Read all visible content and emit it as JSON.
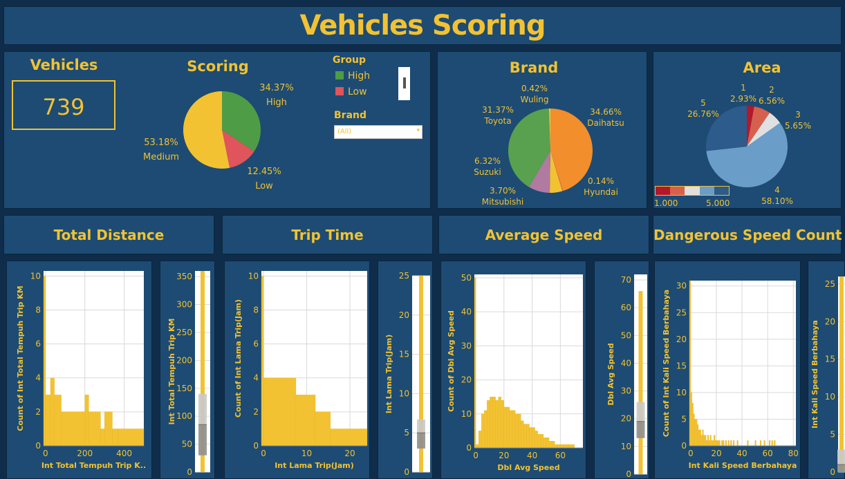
{
  "header": {
    "title": "Vehicles Scoring"
  },
  "kpi": {
    "title": "Vehicles",
    "value": "739"
  },
  "scoring": {
    "title": "Scoring",
    "high_pct": "34.37%",
    "high_label": "High",
    "low_pct": "12.45%",
    "low_label": "Low",
    "medium_pct": "53.18%",
    "medium_label": "Medium"
  },
  "filters": {
    "group_title": "Group",
    "group_items": [
      {
        "label": "High",
        "color": "#4e9c46"
      },
      {
        "label": "Low",
        "color": "#e0545c"
      }
    ],
    "brand_title": "Brand",
    "brand_value": "(All)"
  },
  "brand": {
    "title": "Brand",
    "labels": [
      {
        "pct": "0.42%",
        "name": "Wuling"
      },
      {
        "pct": "34.66%",
        "name": "Daihatsu"
      },
      {
        "pct": "31.37%",
        "name": "Toyota"
      },
      {
        "pct": "6.32%",
        "name": "Suzuki"
      },
      {
        "pct": "0.14%",
        "name": "Hyundai"
      },
      {
        "pct": "3.70%",
        "name": "Mitsubishi"
      }
    ]
  },
  "area": {
    "title": "Area",
    "labels": [
      {
        "num": "1",
        "pct": "2.93%"
      },
      {
        "num": "2",
        "pct": "6.56%"
      },
      {
        "num": "3",
        "pct": "5.65%"
      },
      {
        "num": "4",
        "pct": "58.10%"
      },
      {
        "num": "5",
        "pct": "26.76%"
      }
    ],
    "legend_min": "1.000",
    "legend_max": "5.000"
  },
  "sections": {
    "distance": "Total Distance",
    "trip": "Trip Time",
    "speed": "Average Speed",
    "danger": "Dangerous Speed Count"
  },
  "colors": {
    "accent": "#f2c232",
    "panel": "#1d4b73",
    "background": "#0f2d4a"
  },
  "chart_data": [
    {
      "type": "pie",
      "title": "Scoring",
      "labels": [
        "High",
        "Low",
        "Medium"
      ],
      "values": [
        34.37,
        12.45,
        53.18
      ],
      "colors": [
        "#4e9c46",
        "#e0545c",
        "#f2c232"
      ]
    },
    {
      "type": "pie",
      "title": "Brand",
      "labels": [
        "Daihatsu",
        "Hyundai",
        "Mitsubishi",
        "Suzuki",
        "Toyota",
        "Wuling"
      ],
      "values": [
        34.66,
        0.14,
        3.7,
        6.32,
        31.37,
        0.42
      ],
      "colors": [
        "#f28e2b",
        "#e15759",
        "#f2c232",
        "#b07aa1",
        "#59a14f",
        "#e6c84a"
      ]
    },
    {
      "type": "pie",
      "title": "Area",
      "labels": [
        "1",
        "2",
        "3",
        "4",
        "5"
      ],
      "values": [
        2.93,
        6.56,
        5.65,
        58.1,
        26.76
      ],
      "colors": [
        "#b2182b",
        "#d6604d",
        "#e0e0e0",
        "#6a9ec9",
        "#2c5b8c"
      ]
    },
    {
      "type": "bar",
      "title": "",
      "xlabel": "Int Total Tempuh Trip K..",
      "ylabel": "Count of Int Total Tempuh Trip KM",
      "xlim": [
        -10,
        500
      ],
      "ylim": [
        0,
        10.3
      ],
      "xticks": [
        0,
        200,
        400
      ],
      "yticks": [
        0,
        2,
        4,
        6,
        8,
        10
      ],
      "bins": [
        [
          -10,
          0,
          10
        ],
        [
          0,
          25,
          3
        ],
        [
          25,
          45,
          4
        ],
        [
          45,
          80,
          3
        ],
        [
          80,
          200,
          2
        ],
        [
          200,
          220,
          3
        ],
        [
          220,
          280,
          2
        ],
        [
          280,
          300,
          1
        ],
        [
          300,
          340,
          2
        ],
        [
          340,
          370,
          1
        ],
        [
          370,
          500,
          1
        ]
      ]
    },
    {
      "type": "boxplot",
      "title": "",
      "ylabel": "Int Total Tempuh Trip KM",
      "ylim": [
        0,
        360
      ],
      "yticks": [
        0,
        50,
        100,
        150,
        200,
        250,
        300,
        350
      ],
      "whisker": [
        0,
        360
      ],
      "box": [
        30,
        140
      ],
      "median": 85
    },
    {
      "type": "bar",
      "title": "",
      "xlabel": "Int Lama Trip(Jam)",
      "ylabel": "Count of Int Lama Trip(Jam)",
      "xlim": [
        -0.5,
        24
      ],
      "ylim": [
        0,
        10.3
      ],
      "xticks": [
        0,
        10,
        20
      ],
      "yticks": [
        0,
        2,
        4,
        6,
        8,
        10
      ],
      "bins": [
        [
          -0.5,
          0,
          10
        ],
        [
          0,
          7.5,
          4
        ],
        [
          7.5,
          12,
          3
        ],
        [
          12,
          15.5,
          2
        ],
        [
          15.5,
          24,
          1
        ]
      ]
    },
    {
      "type": "boxplot",
      "title": "",
      "ylabel": "Int Lama Trip(Jam)",
      "ylim": [
        0,
        25
      ],
      "yticks": [
        0,
        5,
        10,
        15,
        20,
        25
      ],
      "whisker": [
        0,
        25
      ],
      "box": [
        3,
        6.7
      ],
      "median": 5
    },
    {
      "type": "bar",
      "title": "",
      "xlabel": "Dbl Avg Speed",
      "ylabel": "Count of Dbl Avg Speed",
      "xlim": [
        -1,
        76
      ],
      "ylim": [
        0,
        51
      ],
      "xticks": [
        0,
        20,
        40,
        60
      ],
      "yticks": [
        0,
        10,
        20,
        30,
        40,
        50
      ],
      "bins": [
        [
          -1,
          0,
          50
        ],
        [
          0,
          2,
          1
        ],
        [
          2,
          4,
          5
        ],
        [
          4,
          6,
          10
        ],
        [
          6,
          8,
          11
        ],
        [
          8,
          10,
          14
        ],
        [
          10,
          12,
          15
        ],
        [
          12,
          14,
          15
        ],
        [
          14,
          16,
          14
        ],
        [
          16,
          18,
          15
        ],
        [
          18,
          20,
          14
        ],
        [
          20,
          22,
          12
        ],
        [
          22,
          24,
          12
        ],
        [
          24,
          26,
          11
        ],
        [
          26,
          28,
          11
        ],
        [
          28,
          30,
          10
        ],
        [
          30,
          32,
          10
        ],
        [
          32,
          34,
          8
        ],
        [
          34,
          36,
          7
        ],
        [
          36,
          38,
          7
        ],
        [
          38,
          40,
          6
        ],
        [
          40,
          42,
          6
        ],
        [
          42,
          44,
          5
        ],
        [
          44,
          46,
          4
        ],
        [
          46,
          48,
          4
        ],
        [
          48,
          50,
          3
        ],
        [
          50,
          52,
          3
        ],
        [
          52,
          54,
          2
        ],
        [
          54,
          56,
          2
        ],
        [
          56,
          58,
          1
        ],
        [
          58,
          60,
          1
        ],
        [
          60,
          62,
          1
        ],
        [
          62,
          64,
          1
        ],
        [
          64,
          66,
          1
        ],
        [
          66,
          70,
          1
        ]
      ]
    },
    {
      "type": "boxplot",
      "title": "",
      "ylabel": "Dbl Avg Speed",
      "ylim": [
        0,
        72
      ],
      "yticks": [
        0,
        10,
        20,
        30,
        40,
        50,
        60,
        70
      ],
      "whisker": [
        0,
        66
      ],
      "box": [
        13,
        26
      ],
      "median": 19
    },
    {
      "type": "bar",
      "title": "",
      "xlabel": "Int Kali Speed Berbahaya",
      "ylabel": "Count of Int Kali Speed Berbahaya",
      "xlim": [
        -1,
        82
      ],
      "ylim": [
        0,
        31
      ],
      "xticks": [
        0,
        20,
        40,
        60,
        80
      ],
      "yticks": [
        0,
        5,
        10,
        15,
        20,
        25,
        30
      ],
      "bins": [
        [
          -1,
          0,
          31
        ],
        [
          0,
          1,
          10
        ],
        [
          1,
          2,
          8
        ],
        [
          2,
          3,
          6
        ],
        [
          3,
          4,
          5
        ],
        [
          4,
          5,
          5
        ],
        [
          5,
          6,
          4
        ],
        [
          6,
          7,
          3
        ],
        [
          7,
          8,
          3
        ],
        [
          8,
          9,
          2
        ],
        [
          9,
          10,
          3
        ],
        [
          10,
          11,
          2
        ],
        [
          11,
          12,
          2
        ],
        [
          12,
          13,
          1
        ],
        [
          13,
          14,
          2
        ],
        [
          14,
          15,
          1
        ],
        [
          15,
          16,
          2
        ],
        [
          16,
          17,
          1
        ],
        [
          17,
          18,
          1
        ],
        [
          18,
          19,
          2
        ],
        [
          19,
          20,
          1
        ],
        [
          20,
          21,
          1
        ],
        [
          21,
          22,
          1
        ],
        [
          22,
          23,
          1
        ],
        [
          24,
          25,
          1
        ],
        [
          25,
          26,
          1
        ],
        [
          27,
          28,
          1
        ],
        [
          29,
          30,
          1
        ],
        [
          31,
          32,
          1
        ],
        [
          33,
          34,
          1
        ],
        [
          36,
          37,
          1
        ],
        [
          44,
          45,
          1
        ],
        [
          50,
          51,
          1
        ],
        [
          54,
          55,
          1
        ],
        [
          57,
          58,
          1
        ],
        [
          61,
          62,
          1
        ],
        [
          63,
          64,
          1
        ],
        [
          65,
          66,
          1
        ]
      ]
    },
    {
      "type": "boxplot",
      "title": "",
      "ylabel": "Int Kali Speed Berbahaya",
      "ylim": [
        0,
        26
      ],
      "yticks": [
        0,
        5,
        10,
        15,
        20,
        25
      ],
      "whisker": [
        0,
        26
      ],
      "box": [
        0,
        3
      ],
      "median": 1
    }
  ]
}
